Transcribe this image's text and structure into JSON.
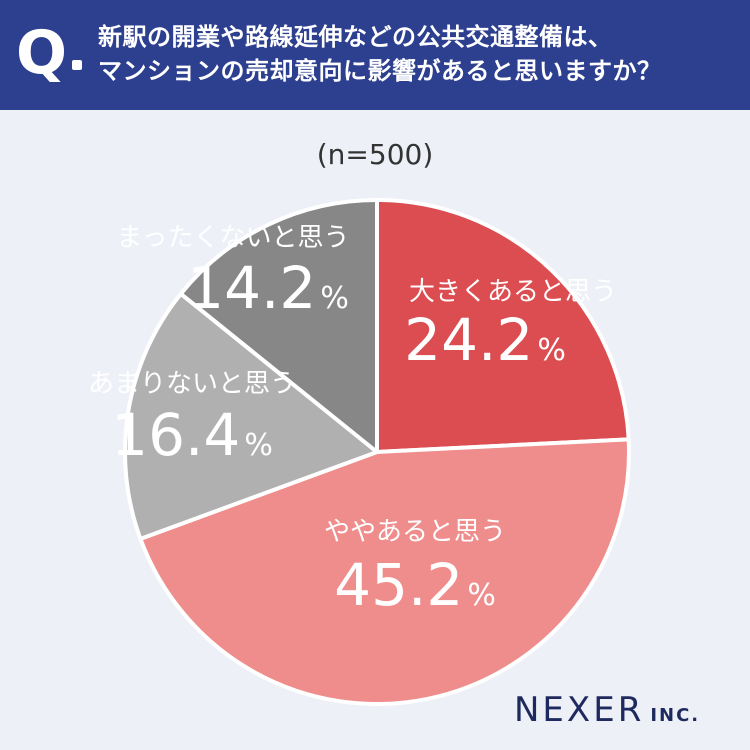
{
  "header": {
    "q_mark": "Q",
    "question_line1": "新駅の開業や路線延伸などの公共交通整備は、",
    "question_line2": "マンションの売却意向に影響があると思いますか？"
  },
  "sample_size_label": "(n=500)",
  "brand": {
    "name": "NEXER",
    "suffix": "INC."
  },
  "colors": {
    "header_bg": "#2d3f8f",
    "page_bg": "#eef0f8",
    "slice_1": "#db4d50",
    "slice_2": "#ef8d8d",
    "slice_3": "#b0b0b0",
    "slice_4": "#878787"
  },
  "chart_data": {
    "type": "pie",
    "title": "",
    "categories": [
      "大きくあると思う",
      "ややあると思う",
      "あまりないと思う",
      "まったくないと思う"
    ],
    "values": [
      24.2,
      45.2,
      16.4,
      14.2
    ],
    "value_labels": [
      "24.2",
      "45.2",
      "16.4",
      "14.2"
    ],
    "unit": "%",
    "start": "12 o'clock, clockwise"
  }
}
